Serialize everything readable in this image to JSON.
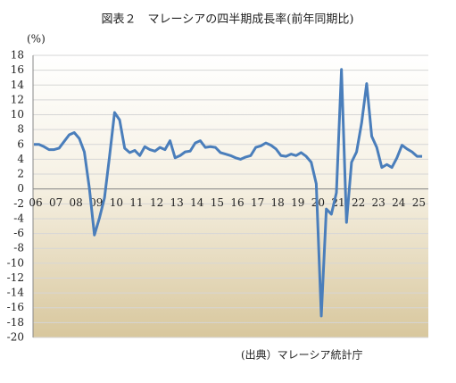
{
  "chart_data": {
    "type": "line",
    "title": "図表２　マレーシアの四半期成長率(前年同期比)",
    "y_label": "(%)",
    "source": "(出典）マレーシア統計庁",
    "categories": [
      "06",
      null,
      null,
      null,
      "07",
      null,
      null,
      null,
      "08",
      null,
      null,
      null,
      "09",
      null,
      null,
      null,
      "10",
      null,
      null,
      null,
      "11",
      null,
      null,
      null,
      "12",
      null,
      null,
      null,
      "13",
      null,
      null,
      null,
      "14",
      null,
      null,
      null,
      "15",
      null,
      null,
      null,
      "16",
      null,
      null,
      null,
      "17",
      null,
      null,
      null,
      "18",
      null,
      null,
      null,
      "19",
      null,
      null,
      null,
      "20",
      null,
      null,
      null,
      "21",
      null,
      null,
      null,
      "22",
      null,
      null,
      null,
      "23",
      null,
      null,
      null,
      "24",
      null,
      null,
      null,
      "25",
      null
    ],
    "series": [
      {
        "color": "#4a7ebb",
        "values": [
          6.0,
          6.0,
          5.7,
          5.3,
          5.3,
          5.5,
          6.4,
          7.3,
          7.6,
          6.8,
          5.0,
          0.1,
          -6.2,
          -3.9,
          -1.2,
          4.4,
          10.3,
          9.3,
          5.5,
          4.9,
          5.2,
          4.5,
          5.7,
          5.3,
          5.1,
          5.6,
          5.3,
          6.5,
          4.2,
          4.5,
          5.0,
          5.1,
          6.2,
          6.5,
          5.6,
          5.7,
          5.6,
          4.9,
          4.7,
          4.5,
          4.2,
          4.0,
          4.3,
          4.5,
          5.6,
          5.8,
          6.2,
          5.9,
          5.4,
          4.5,
          4.4,
          4.7,
          4.5,
          4.9,
          4.4,
          3.6,
          0.7,
          -17.1,
          -2.7,
          -3.4,
          -0.5,
          16.1,
          -4.5,
          3.6,
          5.0,
          8.9,
          14.2,
          7.1,
          5.6,
          2.9,
          3.3,
          2.9,
          4.2,
          5.9,
          5.4,
          5.0,
          4.4,
          4.4
        ]
      }
    ],
    "ylim": [
      -20,
      18
    ],
    "yticks": [
      -20,
      -18,
      -16,
      -14,
      -12,
      -10,
      -8,
      -6,
      -4,
      -2,
      0,
      2,
      4,
      6,
      8,
      10,
      12,
      14,
      16,
      18
    ],
    "grid": true
  }
}
